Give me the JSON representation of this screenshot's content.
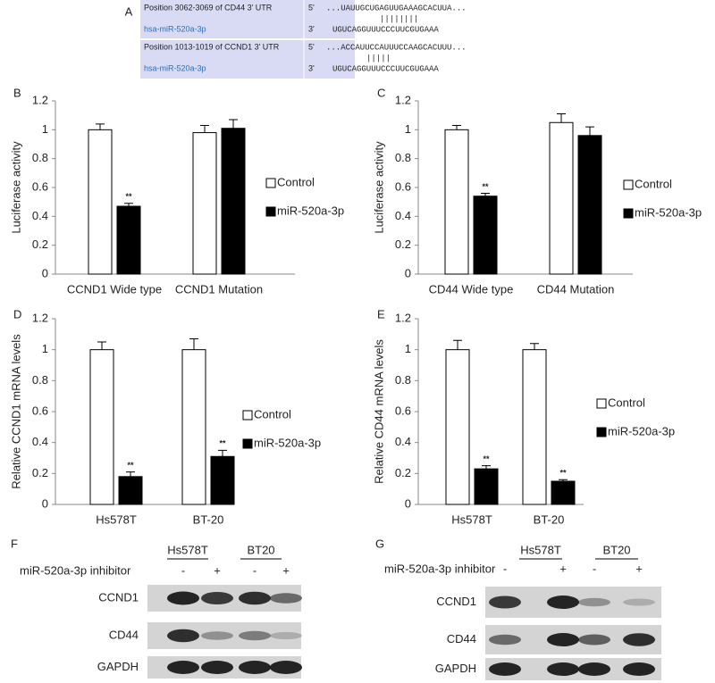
{
  "panel_a": {
    "label": "A",
    "rows": [
      {
        "name": "Position 3062-3069 of CD44 3' UTR",
        "end": "5'",
        "sequence": "...UAUUGCUGAGUUGAAAGCACUUA..."
      },
      {
        "pairing": "||||||||"
      },
      {
        "name": "hsa-miR-520a-3p",
        "end": "3'",
        "sequence": "UGUCAGGUUUCCCUUCGUGAAA"
      },
      {
        "name": "Position 1013-1019 of CCND1 3' UTR",
        "end": "5'",
        "sequence": "...ACCAUUCCAUUUCCAAGCACUUU..."
      },
      {
        "pairing": "|||||"
      },
      {
        "name": "hsa-miR-520a-3p",
        "end": "3'",
        "sequence": "UGUCAGGUUUCCCUUCGUGAAA"
      }
    ]
  },
  "chart_data": [
    {
      "type": "bar",
      "label": "B",
      "ylabel": "Luciferase activity",
      "categories": [
        "CCND1 Wide type",
        "CCND1 Mutation"
      ],
      "series": [
        {
          "name": "Control",
          "color": "#ffffff",
          "values": [
            1.0,
            0.98
          ],
          "errors": [
            0.04,
            0.05
          ]
        },
        {
          "name": "miR-520a-3p",
          "color": "#000000",
          "values": [
            0.47,
            1.01
          ],
          "errors": [
            0.02,
            0.06
          ],
          "significance": [
            "**",
            null
          ]
        }
      ],
      "ylim": [
        0,
        1.2
      ],
      "yticks": [
        0,
        0.2,
        0.4,
        0.6,
        0.8,
        1,
        1.2
      ]
    },
    {
      "type": "bar",
      "label": "C",
      "ylabel": "Luciferase activity",
      "categories": [
        "CD44 Wide type",
        "CD44 Mutation"
      ],
      "series": [
        {
          "name": "Control",
          "color": "#ffffff",
          "values": [
            1.0,
            1.05
          ],
          "errors": [
            0.03,
            0.06
          ]
        },
        {
          "name": "miR-520a-3p",
          "color": "#000000",
          "values": [
            0.54,
            0.96
          ],
          "errors": [
            0.02,
            0.06
          ],
          "significance": [
            "**",
            null
          ]
        }
      ],
      "ylim": [
        0,
        1.2
      ],
      "yticks": [
        0,
        0.2,
        0.4,
        0.6,
        0.8,
        1,
        1.2
      ]
    },
    {
      "type": "bar",
      "label": "D",
      "ylabel": "Relative CCND1 mRNA levels",
      "categories": [
        "Hs578T",
        "BT-20"
      ],
      "series": [
        {
          "name": "Control",
          "color": "#ffffff",
          "values": [
            1.0,
            1.0
          ],
          "errors": [
            0.05,
            0.07
          ]
        },
        {
          "name": "miR-520a-3p",
          "color": "#000000",
          "values": [
            0.18,
            0.31
          ],
          "errors": [
            0.03,
            0.04
          ],
          "significance": [
            "**",
            "**"
          ]
        }
      ],
      "ylim": [
        0,
        1.2
      ],
      "yticks": [
        0,
        0.2,
        0.4,
        0.6,
        0.8,
        1,
        1.2
      ]
    },
    {
      "type": "bar",
      "label": "E",
      "ylabel": "Relative CD44 mRNA levels",
      "categories": [
        "Hs578T",
        "BT-20"
      ],
      "series": [
        {
          "name": "Control",
          "color": "#ffffff",
          "values": [
            1.0,
            1.0
          ],
          "errors": [
            0.06,
            0.04
          ]
        },
        {
          "name": "miR-520a-3p",
          "color": "#000000",
          "values": [
            0.23,
            0.15
          ],
          "errors": [
            0.02,
            0.01
          ],
          "significance": [
            "**",
            "**"
          ]
        }
      ],
      "ylim": [
        0,
        1.2
      ],
      "yticks": [
        0,
        0.2,
        0.4,
        0.6,
        0.8,
        1,
        1.2
      ]
    }
  ],
  "panel_f": {
    "label": "F",
    "groups": [
      "Hs578T",
      "BT20"
    ],
    "treatment": "miR-520a-3p inhibitor",
    "lanes": [
      "-",
      "+",
      "-",
      "+"
    ],
    "bands": [
      "CCND1",
      "CD44",
      "GAPDH"
    ]
  },
  "panel_g": {
    "label": "G",
    "groups": [
      "Hs578T",
      "BT20"
    ],
    "treatment": "miR-520a-3p inhibitor",
    "lanes": [
      "-",
      "+",
      "-",
      "+"
    ],
    "bands": [
      "CCND1",
      "CD44",
      "GAPDH"
    ]
  }
}
